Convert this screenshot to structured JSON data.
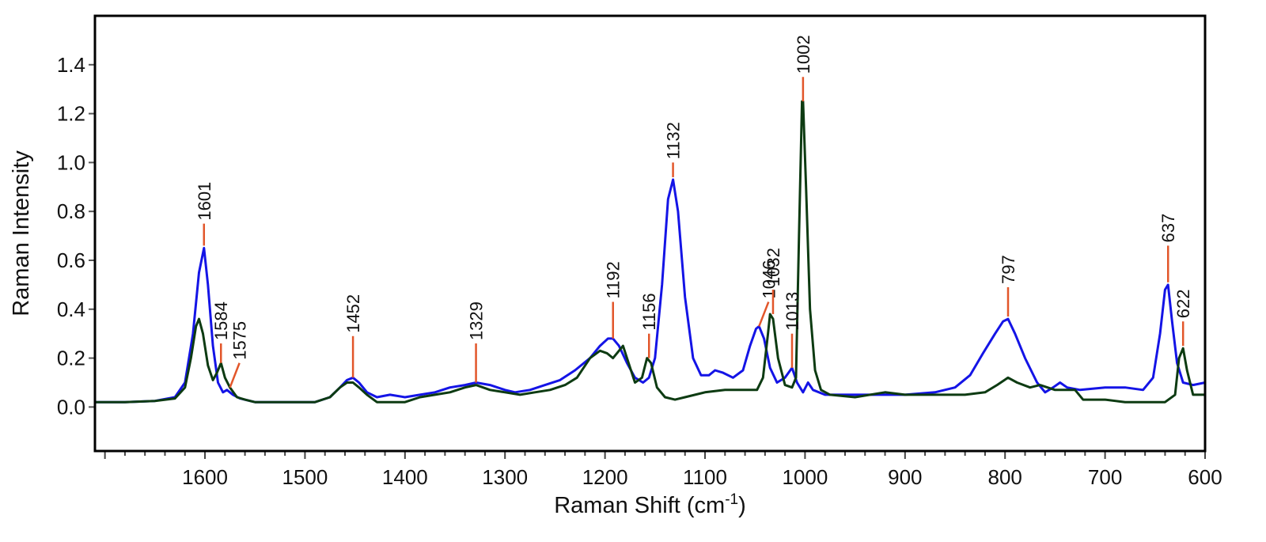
{
  "chart_data": {
    "type": "line",
    "title": "",
    "xlabel": "Raman Shift (cm",
    "xlabel_sup": "-1",
    "xlabel_end": ")",
    "ylabel": "Raman Intensity",
    "xlim": [
      1710,
      600
    ],
    "ylim": [
      -0.18,
      1.6
    ],
    "x_reversed": true,
    "grid": false,
    "x_ticks": [
      1600,
      1500,
      1400,
      1300,
      1200,
      1100,
      1000,
      900,
      800,
      700,
      600
    ],
    "y_ticks": [
      0.0,
      0.2,
      0.4,
      0.6,
      0.8,
      1.0,
      1.2,
      1.4
    ],
    "y_tick_labels": [
      "0.0",
      "0.2",
      "0.4",
      "0.6",
      "0.8",
      "1.0",
      "1.2",
      "1.4"
    ],
    "colors": {
      "blue": "#1414e6",
      "green": "#0d3b12",
      "marker": "#e2562a",
      "frame": "#000000"
    },
    "series": [
      {
        "name": "blue spectrum",
        "color": "#1414e6",
        "points": [
          [
            1710,
            0.02
          ],
          [
            1680,
            0.02
          ],
          [
            1650,
            0.025
          ],
          [
            1630,
            0.04
          ],
          [
            1620,
            0.1
          ],
          [
            1612,
            0.3
          ],
          [
            1606,
            0.55
          ],
          [
            1601,
            0.65
          ],
          [
            1597,
            0.5
          ],
          [
            1592,
            0.25
          ],
          [
            1587,
            0.1
          ],
          [
            1582,
            0.06
          ],
          [
            1578,
            0.07
          ],
          [
            1572,
            0.05
          ],
          [
            1565,
            0.035
          ],
          [
            1550,
            0.02
          ],
          [
            1520,
            0.02
          ],
          [
            1490,
            0.02
          ],
          [
            1475,
            0.04
          ],
          [
            1465,
            0.08
          ],
          [
            1458,
            0.11
          ],
          [
            1452,
            0.12
          ],
          [
            1446,
            0.1
          ],
          [
            1438,
            0.06
          ],
          [
            1428,
            0.04
          ],
          [
            1415,
            0.05
          ],
          [
            1400,
            0.04
          ],
          [
            1385,
            0.05
          ],
          [
            1370,
            0.06
          ],
          [
            1355,
            0.08
          ],
          [
            1340,
            0.09
          ],
          [
            1329,
            0.1
          ],
          [
            1315,
            0.09
          ],
          [
            1300,
            0.07
          ],
          [
            1290,
            0.06
          ],
          [
            1275,
            0.07
          ],
          [
            1260,
            0.09
          ],
          [
            1245,
            0.11
          ],
          [
            1230,
            0.15
          ],
          [
            1215,
            0.2
          ],
          [
            1205,
            0.25
          ],
          [
            1197,
            0.28
          ],
          [
            1192,
            0.28
          ],
          [
            1186,
            0.25
          ],
          [
            1178,
            0.18
          ],
          [
            1170,
            0.12
          ],
          [
            1162,
            0.1
          ],
          [
            1156,
            0.12
          ],
          [
            1150,
            0.2
          ],
          [
            1143,
            0.5
          ],
          [
            1137,
            0.85
          ],
          [
            1132,
            0.93
          ],
          [
            1127,
            0.8
          ],
          [
            1120,
            0.45
          ],
          [
            1112,
            0.2
          ],
          [
            1104,
            0.13
          ],
          [
            1096,
            0.13
          ],
          [
            1090,
            0.15
          ],
          [
            1082,
            0.14
          ],
          [
            1072,
            0.12
          ],
          [
            1062,
            0.15
          ],
          [
            1055,
            0.25
          ],
          [
            1049,
            0.32
          ],
          [
            1046,
            0.33
          ],
          [
            1041,
            0.28
          ],
          [
            1035,
            0.16
          ],
          [
            1028,
            0.1
          ],
          [
            1020,
            0.12
          ],
          [
            1013,
            0.16
          ],
          [
            1008,
            0.1
          ],
          [
            1002,
            0.06
          ],
          [
            997,
            0.1
          ],
          [
            992,
            0.07
          ],
          [
            980,
            0.05
          ],
          [
            950,
            0.05
          ],
          [
            900,
            0.05
          ],
          [
            870,
            0.06
          ],
          [
            850,
            0.08
          ],
          [
            835,
            0.13
          ],
          [
            822,
            0.22
          ],
          [
            810,
            0.3
          ],
          [
            802,
            0.35
          ],
          [
            797,
            0.36
          ],
          [
            790,
            0.3
          ],
          [
            780,
            0.2
          ],
          [
            768,
            0.1
          ],
          [
            760,
            0.06
          ],
          [
            752,
            0.08
          ],
          [
            745,
            0.1
          ],
          [
            738,
            0.08
          ],
          [
            725,
            0.07
          ],
          [
            700,
            0.08
          ],
          [
            680,
            0.08
          ],
          [
            662,
            0.07
          ],
          [
            652,
            0.12
          ],
          [
            645,
            0.3
          ],
          [
            640,
            0.48
          ],
          [
            637,
            0.5
          ],
          [
            633,
            0.35
          ],
          [
            628,
            0.18
          ],
          [
            622,
            0.1
          ],
          [
            612,
            0.09
          ],
          [
            600,
            0.1
          ]
        ]
      },
      {
        "name": "green spectrum",
        "color": "#0d3b12",
        "points": [
          [
            1710,
            0.02
          ],
          [
            1680,
            0.02
          ],
          [
            1650,
            0.025
          ],
          [
            1630,
            0.035
          ],
          [
            1620,
            0.08
          ],
          [
            1614,
            0.2
          ],
          [
            1609,
            0.33
          ],
          [
            1606,
            0.36
          ],
          [
            1602,
            0.3
          ],
          [
            1597,
            0.17
          ],
          [
            1592,
            0.11
          ],
          [
            1588,
            0.14
          ],
          [
            1584,
            0.18
          ],
          [
            1580,
            0.12
          ],
          [
            1575,
            0.08
          ],
          [
            1568,
            0.04
          ],
          [
            1560,
            0.03
          ],
          [
            1550,
            0.02
          ],
          [
            1520,
            0.02
          ],
          [
            1490,
            0.02
          ],
          [
            1475,
            0.04
          ],
          [
            1465,
            0.08
          ],
          [
            1458,
            0.1
          ],
          [
            1452,
            0.1
          ],
          [
            1446,
            0.08
          ],
          [
            1438,
            0.05
          ],
          [
            1428,
            0.02
          ],
          [
            1400,
            0.02
          ],
          [
            1385,
            0.04
          ],
          [
            1370,
            0.05
          ],
          [
            1355,
            0.06
          ],
          [
            1340,
            0.08
          ],
          [
            1329,
            0.09
          ],
          [
            1315,
            0.07
          ],
          [
            1300,
            0.06
          ],
          [
            1285,
            0.05
          ],
          [
            1270,
            0.06
          ],
          [
            1255,
            0.07
          ],
          [
            1240,
            0.09
          ],
          [
            1228,
            0.12
          ],
          [
            1215,
            0.2
          ],
          [
            1205,
            0.23
          ],
          [
            1198,
            0.22
          ],
          [
            1192,
            0.2
          ],
          [
            1186,
            0.23
          ],
          [
            1182,
            0.25
          ],
          [
            1178,
            0.2
          ],
          [
            1170,
            0.1
          ],
          [
            1163,
            0.12
          ],
          [
            1158,
            0.2
          ],
          [
            1154,
            0.18
          ],
          [
            1148,
            0.08
          ],
          [
            1140,
            0.04
          ],
          [
            1130,
            0.03
          ],
          [
            1120,
            0.04
          ],
          [
            1100,
            0.06
          ],
          [
            1080,
            0.07
          ],
          [
            1060,
            0.07
          ],
          [
            1048,
            0.07
          ],
          [
            1042,
            0.12
          ],
          [
            1037,
            0.3
          ],
          [
            1035,
            0.38
          ],
          [
            1032,
            0.36
          ],
          [
            1027,
            0.2
          ],
          [
            1020,
            0.09
          ],
          [
            1013,
            0.08
          ],
          [
            1009,
            0.12
          ],
          [
            1006,
            0.7
          ],
          [
            1003,
            1.25
          ],
          [
            1002,
            1.25
          ],
          [
            999,
            0.9
          ],
          [
            995,
            0.4
          ],
          [
            990,
            0.15
          ],
          [
            984,
            0.07
          ],
          [
            975,
            0.05
          ],
          [
            950,
            0.04
          ],
          [
            920,
            0.06
          ],
          [
            900,
            0.05
          ],
          [
            860,
            0.05
          ],
          [
            840,
            0.05
          ],
          [
            820,
            0.06
          ],
          [
            808,
            0.09
          ],
          [
            797,
            0.12
          ],
          [
            788,
            0.1
          ],
          [
            775,
            0.08
          ],
          [
            765,
            0.09
          ],
          [
            750,
            0.07
          ],
          [
            730,
            0.07
          ],
          [
            722,
            0.03
          ],
          [
            700,
            0.03
          ],
          [
            680,
            0.02
          ],
          [
            660,
            0.02
          ],
          [
            640,
            0.02
          ],
          [
            630,
            0.05
          ],
          [
            626,
            0.2
          ],
          [
            622,
            0.24
          ],
          [
            618,
            0.15
          ],
          [
            612,
            0.05
          ],
          [
            600,
            0.05
          ]
        ]
      }
    ],
    "peaks": [
      {
        "label": "1601",
        "x": 1601,
        "y0": 0.66,
        "y1": 0.75
      },
      {
        "label": "1584",
        "x": 1584,
        "y0": 0.18,
        "y1": 0.26
      },
      {
        "label": "1575",
        "x": 1575,
        "y0": 0.08,
        "y1": 0.18,
        "slant": true
      },
      {
        "label": "1452",
        "x": 1452,
        "y0": 0.12,
        "y1": 0.29
      },
      {
        "label": "1329",
        "x": 1329,
        "y0": 0.1,
        "y1": 0.26
      },
      {
        "label": "1192",
        "x": 1192,
        "y0": 0.28,
        "y1": 0.43
      },
      {
        "label": "1156",
        "x": 1156,
        "y0": 0.2,
        "y1": 0.3
      },
      {
        "label": "1132",
        "x": 1132,
        "y0": 0.94,
        "y1": 1.0
      },
      {
        "label": "1046",
        "x": 1046,
        "y0": 0.33,
        "y1": 0.43,
        "slant": true
      },
      {
        "label": "1032",
        "x": 1032,
        "y0": 0.38,
        "y1": 0.48
      },
      {
        "label": "1013",
        "x": 1013,
        "y0": 0.16,
        "y1": 0.3
      },
      {
        "label": "1002",
        "x": 1002,
        "y0": 1.25,
        "y1": 1.35
      },
      {
        "label": "797",
        "x": 797,
        "y0": 0.37,
        "y1": 0.49
      },
      {
        "label": "637",
        "x": 637,
        "y0": 0.51,
        "y1": 0.66
      },
      {
        "label": "622",
        "x": 622,
        "y0": 0.25,
        "y1": 0.35
      }
    ]
  }
}
